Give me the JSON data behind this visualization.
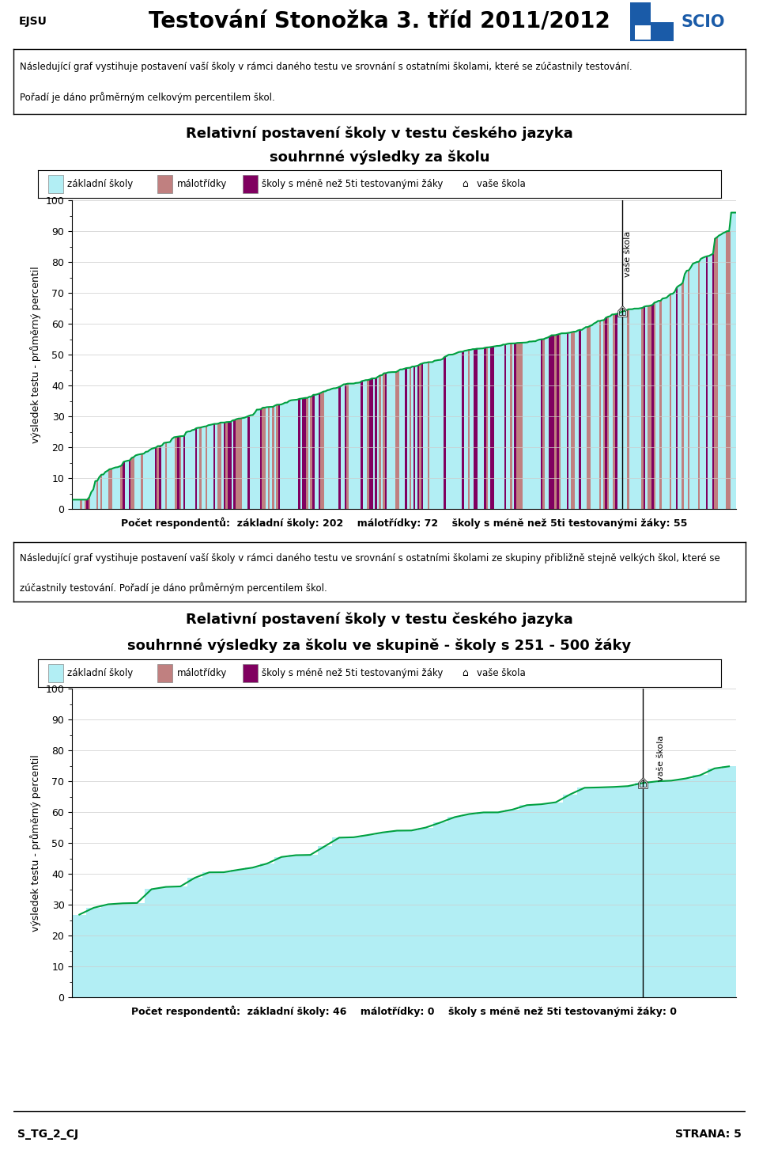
{
  "page_title": "Testování Stonožka 3. tříd 2011/2012",
  "page_subtitle_left": "EJSU",
  "info_text1": "Následující graf vystihuje postavení vaší školy v rámci daného testu ve srovnání s ostatními školami, které se zúčastnily testování.",
  "info_text2": "Pořadí je dáno průměrným celkovým percentilem škol.",
  "chart1_title1": "Relativní postavení školy v testu českého jazyka",
  "chart1_title2": "souhrnné výsledky za školu",
  "chart1_ylabel": "výsledek testu - průměrný percentil",
  "chart1_n_zakladni": 202,
  "chart1_n_malotridky": 72,
  "chart1_n_mene5": 55,
  "chart1_vase_skola_value": 61,
  "chart1_vase_skola_rank": 273,
  "chart2_title1": "Relativní postavení školy v testu českého jazyka",
  "chart2_title2": "souhrnné výsledky za školu ve skupině - školy s 251 - 500 žáky",
  "chart2_ylabel": "výsledek testu - průměrný percentil",
  "chart2_n_zakladni": 46,
  "chart2_n_malotridky": 0,
  "chart2_n_mene5": 0,
  "chart2_vase_skola_value": 61,
  "chart2_vase_skola_rank": 40,
  "info2_text1": "Následující graf vystihuje postavení vaší školy v rámci daného testu ve srovnání s ostatními školami ze skupiny přibližně stejně velkých škol, které se",
  "info2_text2": "zúčastnily testování. Pořadí je dáno průměrným percentilem škol.",
  "footer_left": "S_TG_2_CJ",
  "footer_right": "STRANA: 5",
  "color_zakladni": "#b2eef4",
  "color_malotridky": "#c08080",
  "color_mene5": "#800060",
  "color_line": "#00a040",
  "ylim": [
    0,
    100
  ],
  "yticks": [
    0,
    10,
    20,
    30,
    40,
    50,
    60,
    70,
    80,
    90,
    100
  ],
  "bg_color": "#ffffff",
  "grid_color": "#cccccc"
}
